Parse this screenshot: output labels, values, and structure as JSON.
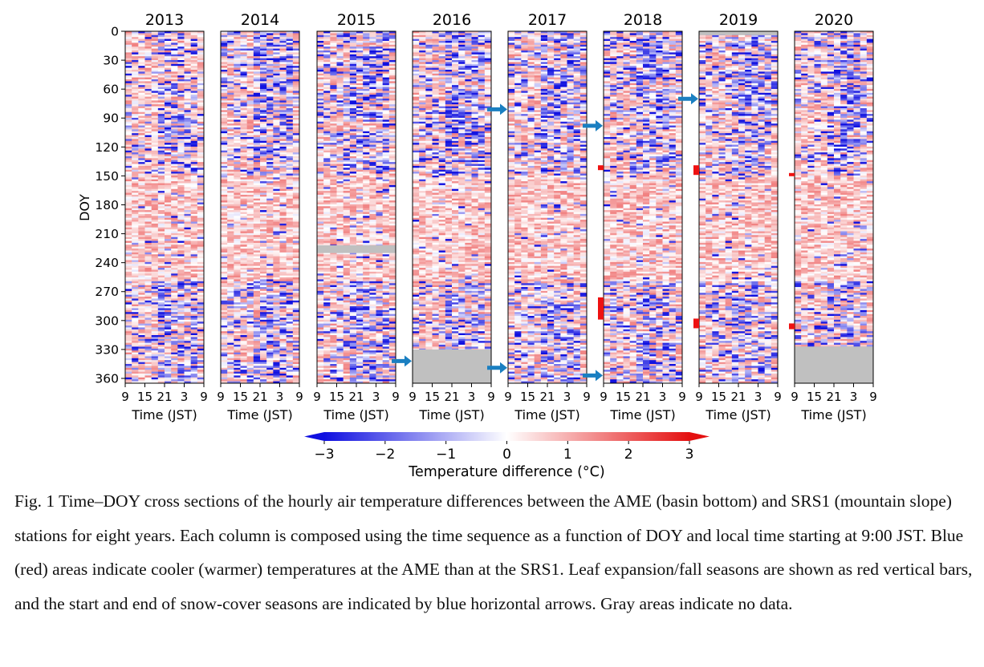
{
  "chart_data": {
    "type": "heatmap",
    "title": "",
    "ylabel": "DOY",
    "xlabel": "Time (JST)",
    "panels": [
      "2013",
      "2014",
      "2015",
      "2016",
      "2017",
      "2018",
      "2019",
      "2020"
    ],
    "y_ticks": [
      "0",
      "30",
      "60",
      "90",
      "120",
      "150",
      "180",
      "210",
      "240",
      "270",
      "300",
      "330",
      "360"
    ],
    "ylim": [
      0,
      365
    ],
    "y_inverted": true,
    "x_ticks": [
      "9",
      "15",
      "21",
      "3",
      "9"
    ],
    "x_range_hours": [
      9,
      33
    ],
    "colorbar": {
      "label": "Temperature difference (°C)",
      "ticks": [
        "−3",
        "−2",
        "−1",
        "0",
        "1",
        "2",
        "3"
      ],
      "range": [
        -3,
        3
      ],
      "colormap": "blue-white-red",
      "extend": "both",
      "low_color": "#1010e0",
      "mid_color": "#ffffff",
      "high_color": "#e41010"
    },
    "no_data_color": "#c0c0c0",
    "no_data_doy": [
      {
        "year": "2015",
        "start": 222,
        "end": 230
      },
      {
        "year": "2016",
        "start": 330,
        "end": 365
      },
      {
        "year": "2019",
        "start": 0,
        "end": 4
      },
      {
        "year": "2020",
        "start": 327,
        "end": 365
      }
    ],
    "snow_cover_arrows_doy": [
      {
        "year": "2016",
        "doy": 342,
        "marks": "end"
      },
      {
        "year": "2017",
        "doy": 81,
        "marks": "start"
      },
      {
        "year": "2017",
        "doy": 349,
        "marks": "end"
      },
      {
        "year": "2018",
        "doy": 98,
        "marks": "start"
      },
      {
        "year": "2018",
        "doy": 357,
        "marks": "end"
      },
      {
        "year": "2019",
        "doy": 70,
        "marks": "start"
      }
    ],
    "leaf_season_bars_doy": [
      {
        "year": "2018",
        "start": 139,
        "end": 144
      },
      {
        "year": "2018",
        "start": 276,
        "end": 299
      },
      {
        "year": "2019",
        "start": 139,
        "end": 149
      },
      {
        "year": "2019",
        "start": 298,
        "end": 308
      },
      {
        "year": "2020",
        "start": 147,
        "end": 150
      },
      {
        "year": "2020",
        "start": 303,
        "end": 309
      }
    ],
    "arrow_color": "#1a7fc1",
    "bar_color": "#ee1111"
  },
  "caption": "Fig. 1 Time–DOY cross sections of the hourly air temperature differences between the AME (basin bottom) and SRS1 (mountain slope) stations for eight years. Each column is composed using the time sequence as a function of DOY and local time starting at 9:00 JST. Blue (red) areas indicate cooler (warmer) temperatures at the AME than at the SRS1. Leaf expansion/fall seasons are shown as red vertical bars, and the start and end of snow-cover seasons are indicated by blue horizontal arrows. Gray areas indicate no data."
}
